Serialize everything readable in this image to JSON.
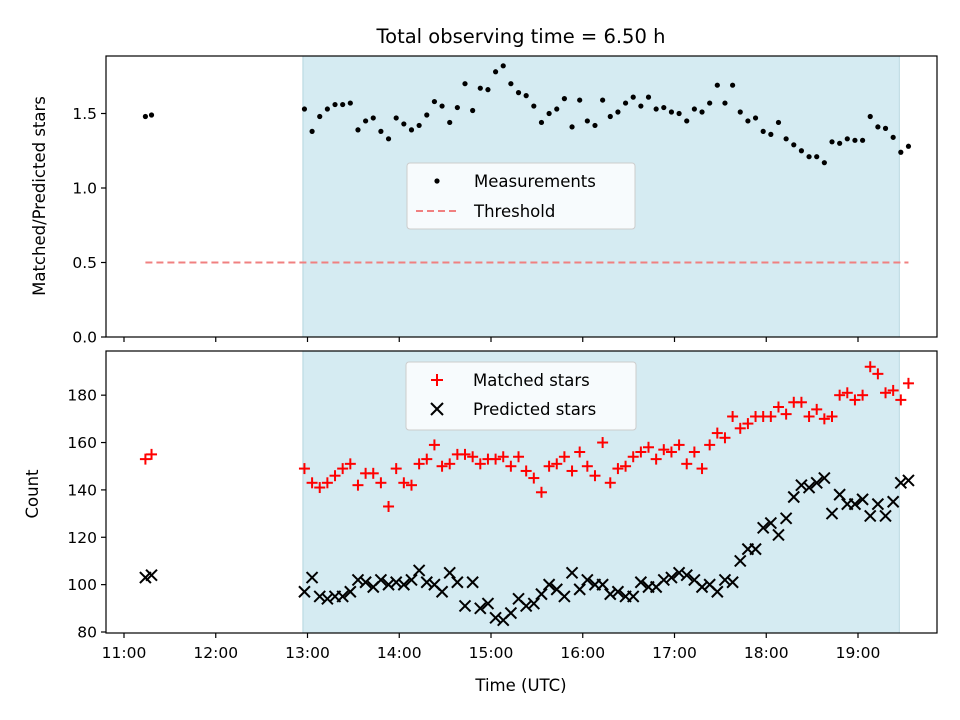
{
  "chart_data": [
    {
      "type": "scatter",
      "title": "Total observing time = 6.50 h",
      "xlabel": "",
      "ylabel": "Matched/Predicted stars",
      "xlim": [
        "11:00",
        "19:55"
      ],
      "ylim": [
        0,
        1.85
      ],
      "yticks": [
        "0.0",
        "0.5",
        "1.0",
        "1.5"
      ],
      "shaded_interval": {
        "start": "12:57",
        "end": "19:27",
        "color": "#d5ebf2"
      },
      "legend": {
        "position": "center",
        "entries": [
          "Measurements",
          "Threshold"
        ]
      },
      "series": [
        {
          "name": "Measurements",
          "marker": "dot",
          "color": "#000000",
          "points": [
            [
              "11:14",
              1.48
            ],
            [
              "11:18",
              1.49
            ],
            [
              "12:58",
              1.53
            ],
            [
              "13:03",
              1.38
            ],
            [
              "13:08",
              1.48
            ],
            [
              "13:13",
              1.53
            ],
            [
              "13:18",
              1.56
            ],
            [
              "13:23",
              1.56
            ],
            [
              "13:28",
              1.57
            ],
            [
              "13:33",
              1.39
            ],
            [
              "13:38",
              1.45
            ],
            [
              "13:43",
              1.47
            ],
            [
              "13:48",
              1.38
            ],
            [
              "13:53",
              1.33
            ],
            [
              "13:58",
              1.47
            ],
            [
              "14:03",
              1.43
            ],
            [
              "14:08",
              1.39
            ],
            [
              "14:13",
              1.42
            ],
            [
              "14:18",
              1.49
            ],
            [
              "14:23",
              1.58
            ],
            [
              "14:28",
              1.55
            ],
            [
              "14:33",
              1.44
            ],
            [
              "14:38",
              1.54
            ],
            [
              "14:43",
              1.7
            ],
            [
              "14:48",
              1.52
            ],
            [
              "14:53",
              1.67
            ],
            [
              "14:58",
              1.66
            ],
            [
              "15:03",
              1.78
            ],
            [
              "15:08",
              1.82
            ],
            [
              "15:13",
              1.7
            ],
            [
              "15:18",
              1.64
            ],
            [
              "15:23",
              1.62
            ],
            [
              "15:28",
              1.55
            ],
            [
              "15:33",
              1.44
            ],
            [
              "15:38",
              1.5
            ],
            [
              "15:43",
              1.53
            ],
            [
              "15:48",
              1.6
            ],
            [
              "15:53",
              1.41
            ],
            [
              "15:58",
              1.59
            ],
            [
              "16:03",
              1.45
            ],
            [
              "16:08",
              1.42
            ],
            [
              "16:13",
              1.59
            ],
            [
              "16:18",
              1.48
            ],
            [
              "16:23",
              1.51
            ],
            [
              "16:28",
              1.57
            ],
            [
              "16:33",
              1.61
            ],
            [
              "16:38",
              1.55
            ],
            [
              "16:43",
              1.61
            ],
            [
              "16:48",
              1.53
            ],
            [
              "16:53",
              1.54
            ],
            [
              "16:58",
              1.51
            ],
            [
              "17:03",
              1.5
            ],
            [
              "17:08",
              1.45
            ],
            [
              "17:13",
              1.53
            ],
            [
              "17:18",
              1.51
            ],
            [
              "17:23",
              1.57
            ],
            [
              "17:28",
              1.69
            ],
            [
              "17:33",
              1.57
            ],
            [
              "17:38",
              1.69
            ],
            [
              "17:43",
              1.51
            ],
            [
              "17:48",
              1.45
            ],
            [
              "17:53",
              1.47
            ],
            [
              "17:58",
              1.38
            ],
            [
              "18:03",
              1.36
            ],
            [
              "18:08",
              1.44
            ],
            [
              "18:13",
              1.33
            ],
            [
              "18:18",
              1.29
            ],
            [
              "18:23",
              1.25
            ],
            [
              "18:28",
              1.21
            ],
            [
              "18:33",
              1.21
            ],
            [
              "18:38",
              1.17
            ],
            [
              "18:43",
              1.31
            ],
            [
              "18:48",
              1.3
            ],
            [
              "18:53",
              1.33
            ],
            [
              "18:58",
              1.32
            ],
            [
              "19:03",
              1.32
            ],
            [
              "19:08",
              1.48
            ],
            [
              "19:13",
              1.41
            ],
            [
              "19:18",
              1.4
            ],
            [
              "19:23",
              1.34
            ],
            [
              "19:28",
              1.24
            ],
            [
              "19:33",
              1.28
            ]
          ]
        },
        {
          "name": "Threshold",
          "style": "dashed",
          "color": "#f08080",
          "points": [
            [
              "11:14",
              0.5
            ],
            [
              "19:33",
              0.5
            ]
          ]
        }
      ]
    },
    {
      "type": "scatter",
      "title": "",
      "xlabel": "Time (UTC)",
      "ylabel": "Count",
      "xlim": [
        "11:00",
        "19:55"
      ],
      "xticks": [
        "11:00",
        "12:00",
        "13:00",
        "14:00",
        "15:00",
        "16:00",
        "17:00",
        "18:00",
        "19:00"
      ],
      "ylim": [
        80,
        196
      ],
      "yticks": [
        "80",
        "100",
        "120",
        "140",
        "160",
        "180"
      ],
      "shaded_interval": {
        "start": "12:57",
        "end": "19:27",
        "color": "#d5ebf2"
      },
      "legend": {
        "position": "top-center",
        "entries": [
          "Matched stars",
          "Predicted stars"
        ]
      },
      "series": [
        {
          "name": "Matched stars",
          "marker": "plus",
          "color": "#ff0000",
          "points": [
            [
              "11:14",
              153
            ],
            [
              "11:18",
              155
            ],
            [
              "12:58",
              149
            ],
            [
              "13:03",
              143
            ],
            [
              "13:08",
              141
            ],
            [
              "13:13",
              143
            ],
            [
              "13:18",
              146
            ],
            [
              "13:23",
              149
            ],
            [
              "13:28",
              151
            ],
            [
              "13:33",
              142
            ],
            [
              "13:38",
              147
            ],
            [
              "13:43",
              147
            ],
            [
              "13:48",
              143
            ],
            [
              "13:53",
              133
            ],
            [
              "13:58",
              149
            ],
            [
              "14:03",
              143
            ],
            [
              "14:08",
              142
            ],
            [
              "14:13",
              151
            ],
            [
              "14:18",
              153
            ],
            [
              "14:23",
              159
            ],
            [
              "14:28",
              150
            ],
            [
              "14:33",
              151
            ],
            [
              "14:38",
              155
            ],
            [
              "14:43",
              155
            ],
            [
              "14:48",
              154
            ],
            [
              "14:53",
              151
            ],
            [
              "14:58",
              153
            ],
            [
              "15:03",
              153
            ],
            [
              "15:08",
              154
            ],
            [
              "15:13",
              150
            ],
            [
              "15:18",
              154
            ],
            [
              "15:23",
              148
            ],
            [
              "15:28",
              145
            ],
            [
              "15:33",
              139
            ],
            [
              "15:38",
              150
            ],
            [
              "15:43",
              151
            ],
            [
              "15:48",
              154
            ],
            [
              "15:53",
              148
            ],
            [
              "15:58",
              156
            ],
            [
              "16:03",
              150
            ],
            [
              "16:08",
              146
            ],
            [
              "16:13",
              160
            ],
            [
              "16:18",
              143
            ],
            [
              "16:23",
              149
            ],
            [
              "16:28",
              150
            ],
            [
              "16:33",
              154
            ],
            [
              "16:38",
              156
            ],
            [
              "16:43",
              158
            ],
            [
              "16:48",
              153
            ],
            [
              "16:53",
              157
            ],
            [
              "16:58",
              156
            ],
            [
              "17:03",
              159
            ],
            [
              "17:08",
              151
            ],
            [
              "17:13",
              156
            ],
            [
              "17:18",
              149
            ],
            [
              "17:23",
              159
            ],
            [
              "17:28",
              164
            ],
            [
              "17:33",
              162
            ],
            [
              "17:38",
              171
            ],
            [
              "17:43",
              166
            ],
            [
              "17:48",
              168
            ],
            [
              "17:53",
              171
            ],
            [
              "17:58",
              171
            ],
            [
              "18:03",
              171
            ],
            [
              "18:08",
              175
            ],
            [
              "18:13",
              172
            ],
            [
              "18:18",
              177
            ],
            [
              "18:23",
              177
            ],
            [
              "18:28",
              171
            ],
            [
              "18:33",
              174
            ],
            [
              "18:38",
              170
            ],
            [
              "18:43",
              171
            ],
            [
              "18:48",
              180
            ],
            [
              "18:53",
              181
            ],
            [
              "18:58",
              178
            ],
            [
              "19:03",
              180
            ],
            [
              "19:08",
              192
            ],
            [
              "19:13",
              189
            ],
            [
              "19:18",
              181
            ],
            [
              "19:23",
              182
            ],
            [
              "19:28",
              178
            ],
            [
              "19:33",
              185
            ]
          ]
        },
        {
          "name": "Predicted stars",
          "marker": "x",
          "color": "#000000",
          "points": [
            [
              "11:14",
              103
            ],
            [
              "11:18",
              104
            ],
            [
              "12:58",
              97
            ],
            [
              "13:03",
              103
            ],
            [
              "13:08",
              95
            ],
            [
              "13:13",
              94
            ],
            [
              "13:18",
              95
            ],
            [
              "13:23",
              95
            ],
            [
              "13:28",
              97
            ],
            [
              "13:33",
              102
            ],
            [
              "13:38",
              101
            ],
            [
              "13:43",
              99
            ],
            [
              "13:48",
              102
            ],
            [
              "13:53",
              100
            ],
            [
              "13:58",
              101
            ],
            [
              "14:03",
              100
            ],
            [
              "14:08",
              102
            ],
            [
              "14:13",
              106
            ],
            [
              "14:18",
              101
            ],
            [
              "14:23",
              100
            ],
            [
              "14:28",
              97
            ],
            [
              "14:33",
              105
            ],
            [
              "14:38",
              101
            ],
            [
              "14:43",
              91
            ],
            [
              "14:48",
              101
            ],
            [
              "14:53",
              90
            ],
            [
              "14:58",
              92
            ],
            [
              "15:03",
              86
            ],
            [
              "15:08",
              85
            ],
            [
              "15:13",
              88
            ],
            [
              "15:18",
              94
            ],
            [
              "15:23",
              91
            ],
            [
              "15:28",
              92
            ],
            [
              "15:33",
              96
            ],
            [
              "15:38",
              100
            ],
            [
              "15:43",
              98
            ],
            [
              "15:48",
              95
            ],
            [
              "15:53",
              105
            ],
            [
              "15:58",
              98
            ],
            [
              "16:03",
              102
            ],
            [
              "16:08",
              100
            ],
            [
              "16:13",
              100
            ],
            [
              "16:18",
              96
            ],
            [
              "16:23",
              97
            ],
            [
              "16:28",
              95
            ],
            [
              "16:33",
              95
            ],
            [
              "16:38",
              101
            ],
            [
              "16:43",
              99
            ],
            [
              "16:48",
              99
            ],
            [
              "16:53",
              102
            ],
            [
              "16:58",
              103
            ],
            [
              "17:03",
              105
            ],
            [
              "17:08",
              104
            ],
            [
              "17:13",
              102
            ],
            [
              "17:18",
              99
            ],
            [
              "17:23",
              100
            ],
            [
              "17:28",
              97
            ],
            [
              "17:33",
              102
            ],
            [
              "17:38",
              101
            ],
            [
              "17:43",
              110
            ],
            [
              "17:48",
              115
            ],
            [
              "17:53",
              115
            ],
            [
              "17:58",
              124
            ],
            [
              "18:03",
              126
            ],
            [
              "18:08",
              121
            ],
            [
              "18:13",
              128
            ],
            [
              "18:18",
              137
            ],
            [
              "18:23",
              142
            ],
            [
              "18:28",
              141
            ],
            [
              "18:33",
              143
            ],
            [
              "18:38",
              145
            ],
            [
              "18:43",
              130
            ],
            [
              "18:48",
              138
            ],
            [
              "18:53",
              134
            ],
            [
              "18:58",
              134
            ],
            [
              "19:03",
              136
            ],
            [
              "19:08",
              129
            ],
            [
              "19:13",
              134
            ],
            [
              "19:18",
              129
            ],
            [
              "19:23",
              135
            ],
            [
              "19:28",
              143
            ],
            [
              "19:33",
              144
            ]
          ]
        }
      ]
    }
  ]
}
